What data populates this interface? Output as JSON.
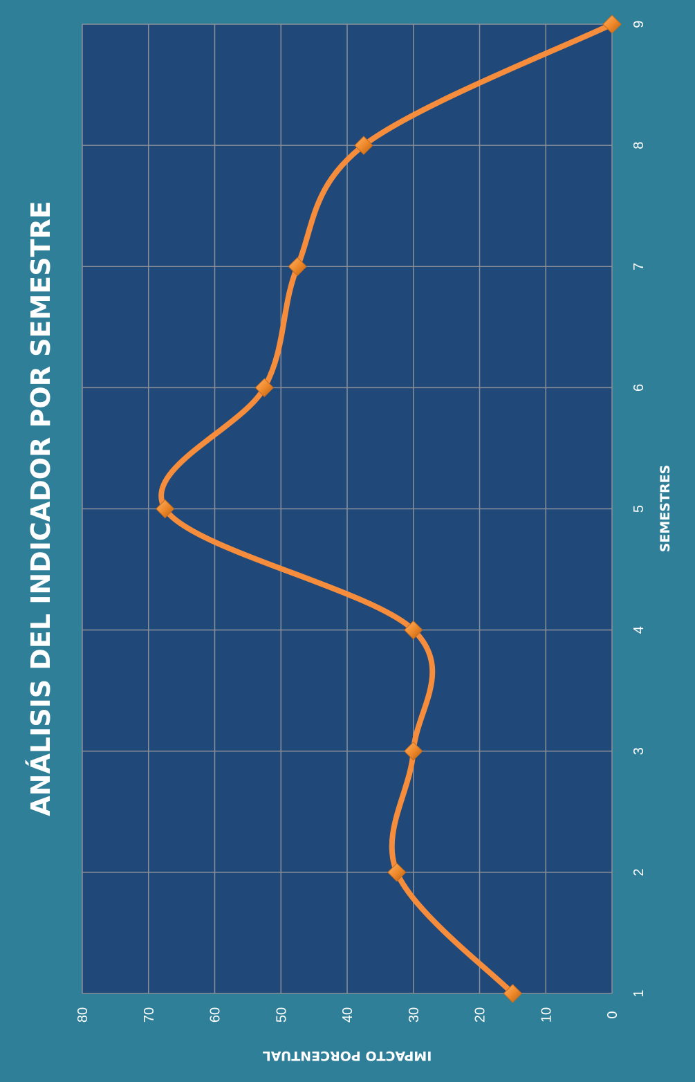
{
  "chart_data": {
    "type": "line",
    "title": "ANÁLISIS DEL INDICADOR POR SEMESTRE",
    "xlabel": "SEMESTRES",
    "ylabel": "IMPACTO PORCENTUAL",
    "x": [
      1,
      2,
      3,
      4,
      5,
      6,
      7,
      8,
      9
    ],
    "series": [
      {
        "values": [
          15,
          32.5,
          30,
          30,
          67.5,
          52.5,
          47.5,
          37.5,
          0
        ]
      }
    ],
    "xlim": [
      1,
      9
    ],
    "ylim": [
      0,
      80
    ],
    "yticks": [
      0,
      10,
      20,
      30,
      40,
      50,
      60,
      70,
      80
    ],
    "grid": true,
    "smooth": true,
    "orientation": "rotated-90-clockwise",
    "colors": {
      "background": "#2f7f99",
      "plot_area": "#204879",
      "gridline": "#8a8f99",
      "line": "#f58d3c",
      "marker": "#e8832a"
    }
  }
}
